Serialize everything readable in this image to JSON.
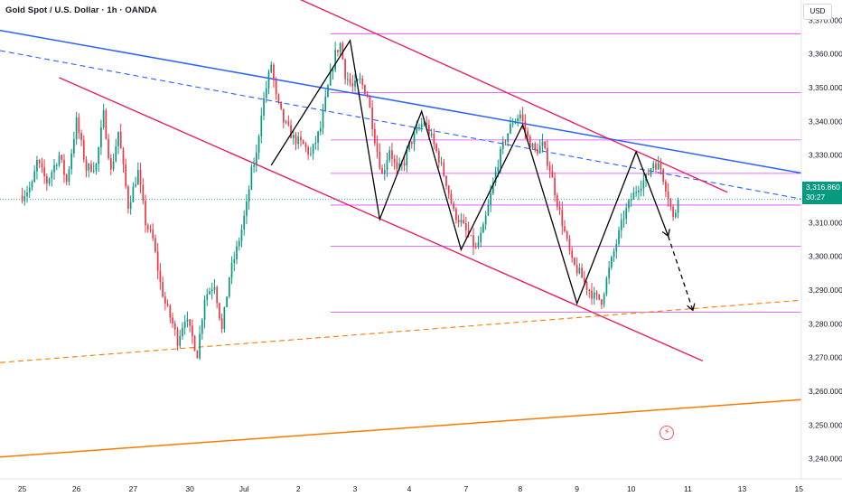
{
  "header": {
    "title": "Gold Spot / U.S. Dollar · 1h · OANDA",
    "currency_button": "USD"
  },
  "last_price": {
    "value": "3,316.860",
    "countdown": "30:27",
    "color": "#089981"
  },
  "colors": {
    "up": "#089981",
    "down": "#f23645",
    "blue_line": "#2962ff",
    "orange_line": "#f57c00",
    "crimson_line": "#e91e63",
    "magenta_level": "#d500f9",
    "black_path": "#000000"
  },
  "chart_data": {
    "type": "candlestick",
    "title": "Gold Spot / U.S. Dollar · 1h · OANDA",
    "ylim": [
      3234,
      3376
    ],
    "y_ticks": [
      "3,370.000",
      "3,360.000",
      "3,350.000",
      "3,340.000",
      "3,330.000",
      "3,320.000",
      "3,310.000",
      "3,300.000",
      "3,290.000",
      "3,280.000",
      "3,270.000",
      "3,260.000",
      "3,250.000",
      "3,240.000"
    ],
    "y_tick_values": [
      3370,
      3360,
      3350,
      3340,
      3330,
      3320,
      3310,
      3300,
      3290,
      3280,
      3270,
      3260,
      3250,
      3240
    ],
    "x_ticks": [
      "25",
      "26",
      "27",
      "30",
      "Jul",
      "2",
      "3",
      "4",
      "7",
      "8",
      "9",
      "10",
      "11",
      "13",
      "15"
    ],
    "x_tick_index": [
      0,
      22,
      45,
      68,
      90,
      112,
      135,
      157,
      180,
      202,
      225,
      247,
      270,
      292,
      315
    ],
    "index_range": [
      -9,
      316
    ],
    "grid": false,
    "price_path_anchors": [
      [
        0,
        3318
      ],
      [
        4,
        3321
      ],
      [
        6,
        3328
      ],
      [
        10,
        3322
      ],
      [
        15,
        3330
      ],
      [
        18,
        3322
      ],
      [
        22,
        3340
      ],
      [
        26,
        3326
      ],
      [
        30,
        3327
      ],
      [
        33,
        3342
      ],
      [
        36,
        3325
      ],
      [
        39,
        3337
      ],
      [
        43,
        3315
      ],
      [
        47,
        3325
      ],
      [
        50,
        3310
      ],
      [
        53,
        3305
      ],
      [
        56,
        3292
      ],
      [
        58,
        3286
      ],
      [
        61,
        3280
      ],
      [
        63,
        3275
      ],
      [
        66,
        3282
      ],
      [
        69,
        3276
      ],
      [
        71,
        3271
      ],
      [
        74,
        3288
      ],
      [
        78,
        3292
      ],
      [
        81,
        3278
      ],
      [
        84,
        3294
      ],
      [
        87,
        3302
      ],
      [
        89,
        3308
      ],
      [
        91,
        3315
      ],
      [
        93,
        3325
      ],
      [
        95,
        3330
      ],
      [
        97,
        3343
      ],
      [
        99,
        3350
      ],
      [
        101,
        3357
      ],
      [
        103,
        3347
      ],
      [
        106,
        3340
      ],
      [
        110,
        3335
      ],
      [
        114,
        3333
      ],
      [
        117,
        3330
      ],
      [
        121,
        3338
      ],
      [
        124,
        3350
      ],
      [
        127,
        3360
      ],
      [
        129,
        3363
      ],
      [
        131,
        3354
      ],
      [
        134,
        3350
      ],
      [
        137,
        3352
      ],
      [
        140,
        3348
      ],
      [
        143,
        3335
      ],
      [
        146,
        3324
      ],
      [
        149,
        3332
      ],
      [
        152,
        3325
      ],
      [
        155,
        3328
      ],
      [
        157,
        3333
      ],
      [
        160,
        3337
      ],
      [
        163,
        3340
      ],
      [
        166,
        3335
      ],
      [
        169,
        3329
      ],
      [
        172,
        3322
      ],
      [
        175,
        3313
      ],
      [
        178,
        3310
      ],
      [
        181,
        3306
      ],
      [
        184,
        3302
      ],
      [
        187,
        3308
      ],
      [
        190,
        3318
      ],
      [
        193,
        3328
      ],
      [
        196,
        3335
      ],
      [
        199,
        3340
      ],
      [
        202,
        3342
      ],
      [
        205,
        3335
      ],
      [
        208,
        3331
      ],
      [
        211,
        3333
      ],
      [
        214,
        3326
      ],
      [
        217,
        3316
      ],
      [
        220,
        3307
      ],
      [
        223,
        3298
      ],
      [
        226,
        3295
      ],
      [
        229,
        3291
      ],
      [
        232,
        3288
      ],
      [
        235,
        3287
      ],
      [
        238,
        3296
      ],
      [
        241,
        3304
      ],
      [
        244,
        3312
      ],
      [
        247,
        3317
      ],
      [
        250,
        3321
      ],
      [
        253,
        3323
      ],
      [
        256,
        3328
      ],
      [
        259,
        3326
      ],
      [
        262,
        3318
      ],
      [
        264,
        3311
      ],
      [
        266,
        3316
      ]
    ],
    "candle_range_units": 3.2,
    "last_close": 3316.86,
    "dotted_last_price_line": {
      "value": 3316.86,
      "color": "#089981"
    },
    "horizontal_levels": {
      "color": "#d500f9",
      "from_index": 125,
      "values": [
        3366,
        3348.5,
        3334.5,
        3324.6,
        3315.2,
        3303,
        3283.4
      ]
    },
    "trendlines": [
      {
        "color": "#2962ff",
        "style": "solid",
        "width": 1.5,
        "points": [
          [
            -9,
            3367
          ],
          [
            316,
            3324.7
          ]
        ]
      },
      {
        "color": "#2962ff",
        "style": "dashed",
        "width": 1.1,
        "points": [
          [
            -9,
            3361
          ],
          [
            316,
            3317
          ]
        ]
      },
      {
        "color": "#f57c00",
        "style": "solid",
        "width": 1.5,
        "points": [
          [
            -9,
            3240.5
          ],
          [
            316,
            3257.5
          ]
        ]
      },
      {
        "color": "#f57c00",
        "style": "dashed",
        "width": 1.1,
        "points": [
          [
            -9,
            3268.5
          ],
          [
            316,
            3287
          ]
        ]
      },
      {
        "color": "#e91e63",
        "style": "solid",
        "width": 1.4,
        "points": [
          [
            86,
            3385
          ],
          [
            286,
            3319
          ]
        ]
      },
      {
        "color": "#e91e63",
        "style": "solid",
        "width": 1.4,
        "points": [
          [
            15,
            3353
          ],
          [
            276,
            3269
          ]
        ]
      }
    ],
    "projection_path": {
      "color": "#000000",
      "solid": [
        [
          101,
          3327
        ],
        [
          133,
          3364
        ],
        [
          145,
          3311
        ],
        [
          162,
          3343
        ],
        [
          178,
          3302
        ],
        [
          203,
          3339
        ],
        [
          225,
          3286
        ],
        [
          249,
          3331
        ],
        [
          262,
          3306
        ]
      ],
      "dashed": [
        [
          262,
          3306
        ],
        [
          272,
          3284
        ]
      ]
    }
  }
}
